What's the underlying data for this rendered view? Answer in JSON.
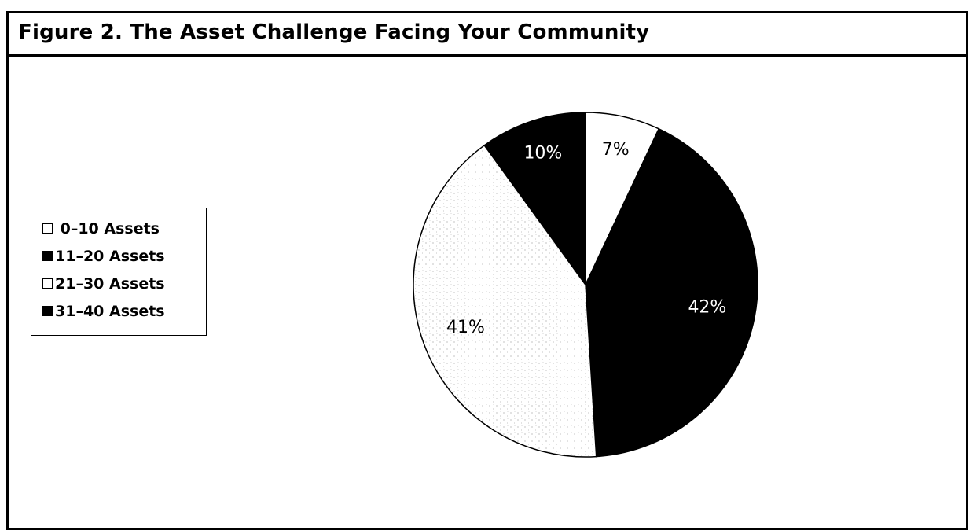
{
  "figure": {
    "title": "Figure 2.  The Asset Challenge Facing Your Community"
  },
  "chart_data": {
    "type": "pie",
    "title": "Figure 2.  The Asset Challenge Facing Your Community",
    "legend_position": "left",
    "categories": [
      "0–10 Assets",
      "11–20 Assets",
      "21–30 Assets",
      "31–40 Assets"
    ],
    "legend_labels": [
      " 0–10 Assets",
      "11–20 Assets",
      "21–30 Assets",
      "31–40 Assets"
    ],
    "values": [
      7,
      42,
      41,
      10
    ],
    "labels": [
      "7%",
      "42%",
      "41%",
      "10%"
    ],
    "colors": [
      "#ffffff",
      "#000000",
      "#f4f4f4",
      "#000000"
    ],
    "label_colors": [
      "#000000",
      "#ffffff",
      "#000000",
      "#ffffff"
    ],
    "fill_patterns": [
      "white",
      "black",
      "stippled",
      "black"
    ]
  }
}
